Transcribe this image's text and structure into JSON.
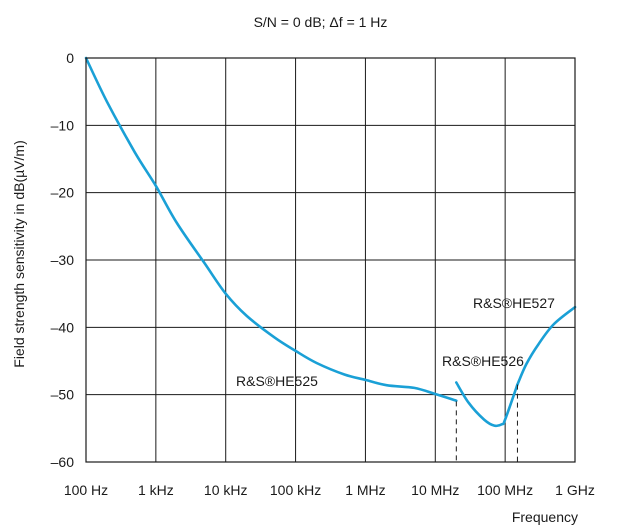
{
  "chart_data": {
    "type": "line",
    "title": "S/N = 0 dB; Δf = 1 Hz",
    "xlabel": "Frequency",
    "ylabel": "Field strength sensitivity in dB(µV/m)",
    "x_scale": "log",
    "xlim": [
      100,
      1000000000
    ],
    "ylim": [
      -60,
      0
    ],
    "grid": true,
    "x_ticks": [
      {
        "value": 100,
        "label": "100 Hz"
      },
      {
        "value": 1000,
        "label": "1 kHz"
      },
      {
        "value": 10000,
        "label": "10 kHz"
      },
      {
        "value": 100000,
        "label": "100 kHz"
      },
      {
        "value": 1000000,
        "label": "1 MHz"
      },
      {
        "value": 10000000,
        "label": "10 MHz"
      },
      {
        "value": 100000000,
        "label": "100 MHz"
      },
      {
        "value": 1000000000,
        "label": "1 GHz"
      }
    ],
    "y_ticks": [
      {
        "value": 0,
        "label": "0"
      },
      {
        "value": -10,
        "label": "–10"
      },
      {
        "value": -20,
        "label": "–20"
      },
      {
        "value": -30,
        "label": "–30"
      },
      {
        "value": -40,
        "label": "–40"
      },
      {
        "value": -50,
        "label": "–50"
      },
      {
        "value": -60,
        "label": "–60"
      }
    ],
    "series": [
      {
        "name": "R&S®HE525",
        "x": [
          100,
          200,
          500,
          1000,
          2000,
          5000,
          10000,
          20000,
          50000,
          100000,
          200000,
          500000,
          1000000,
          2000000,
          5000000,
          10000000,
          20000000
        ],
        "y": [
          0,
          -6.5,
          -14,
          -19,
          -24.5,
          -30.5,
          -35,
          -38.3,
          -41.5,
          -43.5,
          -45.3,
          -47,
          -47.8,
          -48.6,
          -49,
          -49.9,
          -50.9
        ]
      },
      {
        "name": "R&S®HE526",
        "x": [
          20000000,
          30000000,
          50000000,
          70000000,
          90000000,
          100000000,
          150000000
        ],
        "y": [
          -48.2,
          -51.2,
          -53.7,
          -54.6,
          -54.4,
          -53.7,
          -48.5
        ]
      },
      {
        "name": "R&S®HE527",
        "x": [
          150000000,
          200000000,
          300000000,
          500000000,
          1000000000
        ],
        "y": [
          -48.5,
          -45.5,
          -42.5,
          -39.5,
          -37
        ]
      }
    ],
    "markers": [
      {
        "x": 20000000,
        "y_from": -51,
        "y_to": -60,
        "style": "dashed"
      },
      {
        "x": 150000000,
        "y_from": -48.5,
        "y_to": -60,
        "style": "dashed"
      }
    ]
  }
}
